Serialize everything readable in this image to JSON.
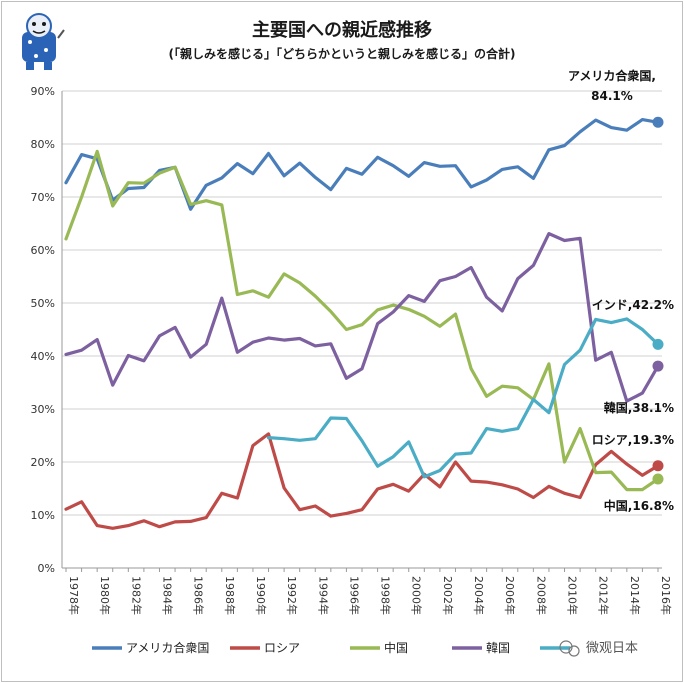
{
  "chart_data": {
    "type": "line",
    "title": "主要国への親近感推移",
    "subtitle": "(「親しみを感じる」「どちらかというと親しみを感じる」の合計)",
    "ylim": [
      0,
      90
    ],
    "yticks": [
      "0%",
      "10%",
      "20%",
      "30%",
      "40%",
      "50%",
      "60%",
      "70%",
      "80%",
      "90%"
    ],
    "x": [
      1978,
      1979,
      1980,
      1981,
      1982,
      1983,
      1984,
      1985,
      1986,
      1987,
      1988,
      1989,
      1990,
      1991,
      1992,
      1993,
      1994,
      1995,
      1996,
      1997,
      1998,
      1999,
      2000,
      2001,
      2002,
      2003,
      2004,
      2005,
      2006,
      2007,
      2008,
      2009,
      2010,
      2011,
      2012,
      2013,
      2014,
      2015,
      2016
    ],
    "xticks": [
      "1978年",
      "1980年",
      "1982年",
      "1984年",
      "1986年",
      "1988年",
      "1990年",
      "1992年",
      "1994年",
      "1996年",
      "1998年",
      "2000年",
      "2002年",
      "2004年",
      "2006年",
      "2008年",
      "2010年",
      "2012年",
      "2014年",
      "2016年"
    ],
    "series": [
      {
        "name": "アメリカ合衆国",
        "color": "#4a7ebb",
        "values": [
          72.7,
          78.0,
          77.2,
          69.4,
          71.6,
          71.8,
          75.0,
          75.6,
          67.7,
          72.2,
          73.6,
          76.3,
          74.4,
          78.2,
          74.0,
          76.4,
          73.7,
          71.4,
          75.4,
          74.3,
          77.5,
          75.9,
          73.9,
          76.5,
          75.8,
          75.9,
          71.9,
          73.2,
          75.2,
          75.7,
          73.5,
          78.9,
          79.7,
          82.3,
          84.5,
          83.1,
          82.6,
          84.6,
          84.1
        ]
      },
      {
        "name": "ロシア",
        "color": "#be4b48",
        "values": [
          11.1,
          12.5,
          8.0,
          7.5,
          8.0,
          8.9,
          7.8,
          8.7,
          8.8,
          9.5,
          14.1,
          13.2,
          23.1,
          25.3,
          15.1,
          11.0,
          11.7,
          9.8,
          10.3,
          11.0,
          14.9,
          15.8,
          14.5,
          17.7,
          15.3,
          20.0,
          16.4,
          16.2,
          15.7,
          14.9,
          13.3,
          15.4,
          14.1,
          13.3,
          19.5,
          22.0,
          19.6,
          17.5,
          19.3
        ]
      },
      {
        "name": "中国",
        "color": "#98b954",
        "values": [
          62.1,
          70.0,
          78.6,
          68.3,
          72.7,
          72.6,
          74.5,
          75.6,
          68.6,
          69.3,
          68.5,
          51.6,
          52.3,
          51.1,
          55.5,
          53.8,
          51.3,
          48.4,
          45.0,
          45.9,
          48.7,
          49.6,
          48.8,
          47.5,
          45.6,
          47.9,
          37.6,
          32.4,
          34.3,
          34.0,
          31.8,
          38.5,
          20.0,
          26.3,
          18.0,
          18.1,
          14.8,
          14.8,
          16.8
        ]
      },
      {
        "name": "韓国",
        "color": "#7d60a0",
        "values": [
          40.3,
          41.1,
          43.1,
          34.5,
          40.1,
          39.1,
          43.8,
          45.4,
          39.8,
          42.2,
          50.9,
          40.7,
          42.6,
          43.4,
          43.0,
          43.3,
          41.9,
          42.3,
          35.8,
          37.6,
          46.1,
          48.3,
          51.4,
          50.3,
          54.2,
          55.0,
          56.7,
          51.1,
          48.5,
          54.6,
          57.1,
          63.1,
          61.8,
          62.2,
          39.2,
          40.7,
          31.5,
          33.0,
          38.1
        ]
      },
      {
        "name": "インド",
        "color": "#4bacc6",
        "values": [
          null,
          null,
          null,
          null,
          null,
          null,
          null,
          null,
          null,
          null,
          null,
          null,
          null,
          24.6,
          24.4,
          24.1,
          24.4,
          28.3,
          28.2,
          24.0,
          19.2,
          21.0,
          23.8,
          17.2,
          18.4,
          21.5,
          21.7,
          26.3,
          25.8,
          26.3,
          31.8,
          29.3,
          38.4,
          41.1,
          46.9,
          46.3,
          47.0,
          45.0,
          42.2
        ]
      }
    ],
    "annotations": {
      "usa": [
        "アメリカ合衆国,",
        "84.1%"
      ],
      "india": "インド,42.2%",
      "korea": "韓国,38.1%",
      "russia": "ロシア,19.3%",
      "china": "中国,16.8%"
    },
    "legend_position": "bottom",
    "grid": true
  },
  "watermark": "微观日本"
}
